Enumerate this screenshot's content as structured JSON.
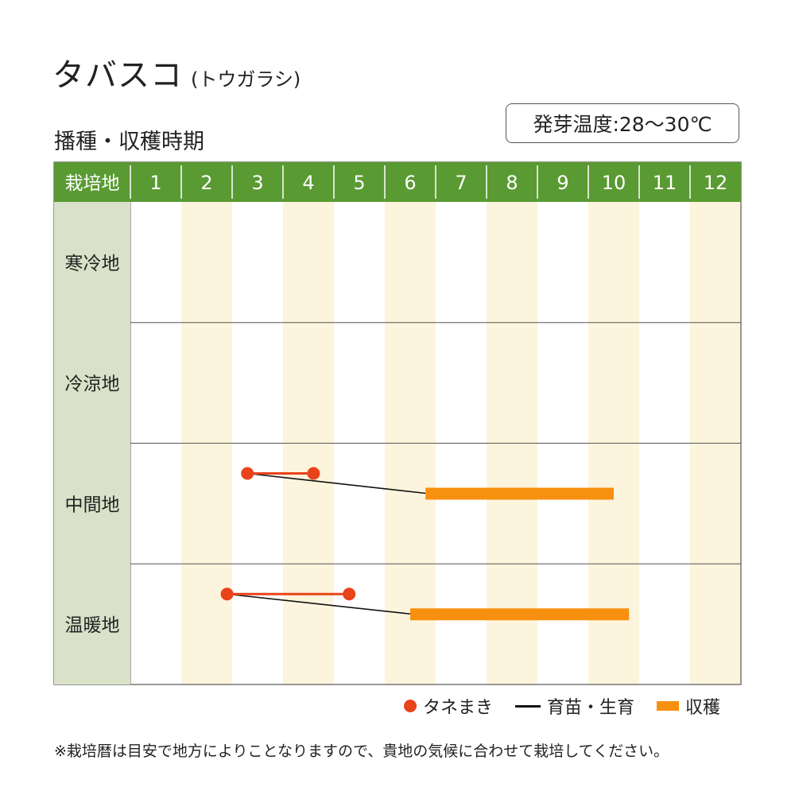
{
  "title": "タバスコ",
  "subtitle": "(トウガラシ)",
  "section_title": "播種・収穫時期",
  "germination_temp": "発芽温度:28〜30℃",
  "header_label": "栽培地",
  "note": "※栽培暦は目安で地方によりことなりますので、貴地の気候に合わせて栽培してください。",
  "legend": {
    "sowing": "タネまき",
    "raising": "育苗・生育",
    "harvest": "収穫"
  },
  "colors": {
    "header_green": "#5a9a33",
    "row_label_bg": "#d9e1c8",
    "stripe": "#fcf4dc",
    "sowing": "#e8431a",
    "harvest": "#f7900f"
  },
  "chart_data": {
    "type": "gantt",
    "months": [
      "1",
      "2",
      "3",
      "4",
      "5",
      "6",
      "7",
      "8",
      "9",
      "10",
      "11",
      "12"
    ],
    "regions": [
      "寒冷地",
      "冷涼地",
      "中間地",
      "温暖地"
    ],
    "schedule": [
      {
        "region": "寒冷地",
        "sowing": null,
        "harvest": null
      },
      {
        "region": "冷涼地",
        "sowing": null,
        "harvest": null
      },
      {
        "region": "中間地",
        "sowing": [
          3.3,
          4.6
        ],
        "harvest": [
          6.8,
          10.5
        ]
      },
      {
        "region": "温暖地",
        "sowing": [
          2.9,
          5.3
        ],
        "harvest": [
          6.5,
          10.8
        ]
      }
    ]
  }
}
